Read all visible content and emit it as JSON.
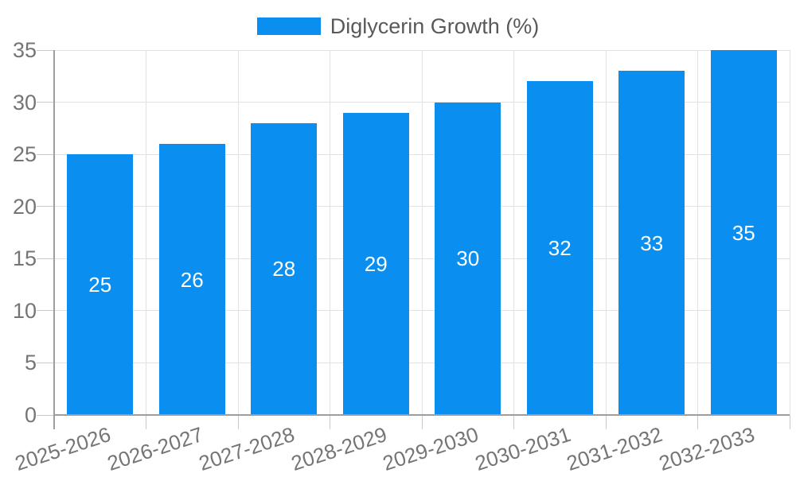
{
  "legend": {
    "label": "Diglycerin Growth (%)"
  },
  "chart_data": {
    "type": "bar",
    "title": "",
    "xlabel": "",
    "ylabel": "",
    "categories": [
      "2025-2026",
      "2026-2027",
      "2027-2028",
      "2028-2029",
      "2029-2030",
      "2030-2031",
      "2031-2032",
      "2032-2033"
    ],
    "series": [
      {
        "name": "Diglycerin Growth (%)",
        "values": [
          25,
          26,
          28,
          29,
          30,
          32,
          33,
          35
        ]
      }
    ],
    "bar_value_labels": [
      "25",
      "26",
      "28",
      "29",
      "30",
      "32",
      "33",
      "35"
    ],
    "ylim": [
      0,
      35
    ],
    "ytick_interval": 5,
    "yticks": [
      "0",
      "5",
      "10",
      "15",
      "20",
      "25",
      "30",
      "35"
    ],
    "grid": true,
    "legend_position": "top-center",
    "x_label_rotation_deg": -18
  },
  "style": {
    "bar_color": "#0a8ff0",
    "bar_label_color": "#ffffff",
    "grid_color": "#e2e2e2",
    "axis_color": "#9e9e9e",
    "tick_color": "#c9c9c9",
    "axis_text_color": "#757575",
    "legend_text_color": "#595959",
    "background_color": "#ffffff"
  }
}
